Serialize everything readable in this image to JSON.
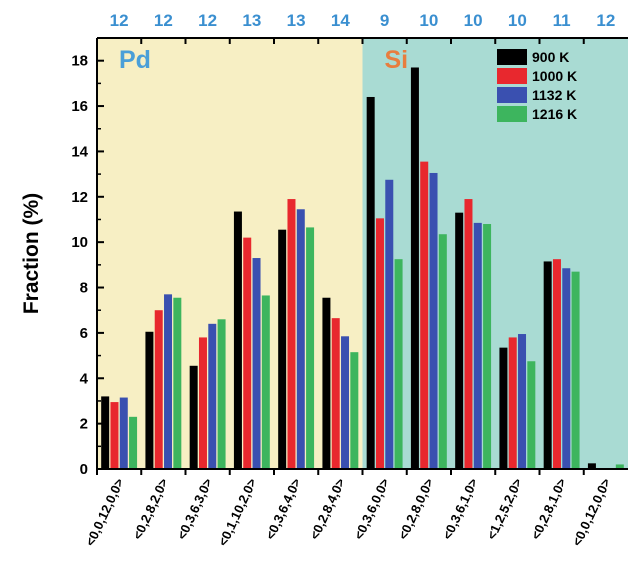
{
  "chart_data": {
    "type": "bar",
    "ylabel": "Fraction (%)",
    "ylim": [
      0,
      19
    ],
    "yticks": [
      0,
      2,
      4,
      6,
      8,
      10,
      12,
      14,
      16,
      18
    ],
    "categories": [
      "<0,0,12,0,0>",
      "<0,2,8,2,0>",
      "<0,3,6,3,0>",
      "<0,1,10,2,0>",
      "<0,3,6,4,0>",
      "<0,2,8,4,0>",
      "<0,3,6,0,0>",
      "<0,2,8,0,0>",
      "<0,3,6,1,0>",
      "<1,2,5,2,0>",
      "<0,2,8,1,0>",
      "<0,0,12,0,0>"
    ],
    "coordination_numbers": [
      "12",
      "12",
      "12",
      "13",
      "13",
      "14",
      "9",
      "10",
      "10",
      "10",
      "11",
      "12"
    ],
    "regions": [
      {
        "label": "Pd",
        "color": "#4a9fd8",
        "background": "#f7efc4",
        "categories": [
          0,
          5
        ]
      },
      {
        "label": "Si",
        "color": "#e87d3e",
        "background": "#a9dbd3",
        "categories": [
          6,
          11
        ]
      }
    ],
    "series": [
      {
        "name": "900 K",
        "color": "#000000",
        "values": [
          3.2,
          6.05,
          4.55,
          11.35,
          10.55,
          7.55,
          16.4,
          17.7,
          11.3,
          5.35,
          9.15,
          0.25
        ]
      },
      {
        "name": "1000 K",
        "color": "#e8282e",
        "values": [
          2.95,
          7.0,
          5.8,
          10.2,
          11.9,
          6.65,
          11.05,
          13.55,
          11.9,
          5.8,
          9.25,
          0.0
        ]
      },
      {
        "name": "1132 K",
        "color": "#3a50b0",
        "values": [
          3.15,
          7.7,
          6.4,
          9.3,
          11.45,
          5.85,
          12.75,
          13.05,
          10.85,
          5.95,
          8.85,
          0.0
        ]
      },
      {
        "name": "1216 K",
        "color": "#3db55e",
        "values": [
          2.3,
          7.55,
          6.6,
          7.65,
          10.65,
          5.15,
          9.25,
          10.35,
          10.8,
          4.75,
          8.7,
          0.2
        ]
      }
    ],
    "legend": {
      "position": "top-right"
    },
    "grid": false
  },
  "colors": {
    "cn_label": "#3a8fd0",
    "axis": "#000000"
  }
}
